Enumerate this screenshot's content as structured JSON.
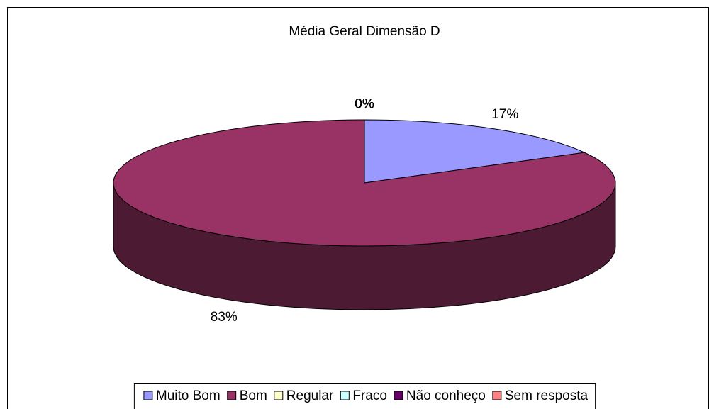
{
  "chart_data": {
    "type": "pie",
    "title": "Média Geral Dimensão D",
    "categories": [
      "Muito Bom",
      "Bom",
      "Regular",
      "Fraco",
      "Não conheço",
      "Sem resposta"
    ],
    "values": [
      17,
      83,
      0,
      0,
      0,
      0
    ],
    "value_labels": [
      "17%",
      "83%",
      "0%",
      "0%",
      "0%",
      "0%"
    ],
    "colors": [
      "#9999ff",
      "#993366",
      "#ffffcc",
      "#ccffff",
      "#660066",
      "#ff8080"
    ],
    "legend": "bottom"
  }
}
